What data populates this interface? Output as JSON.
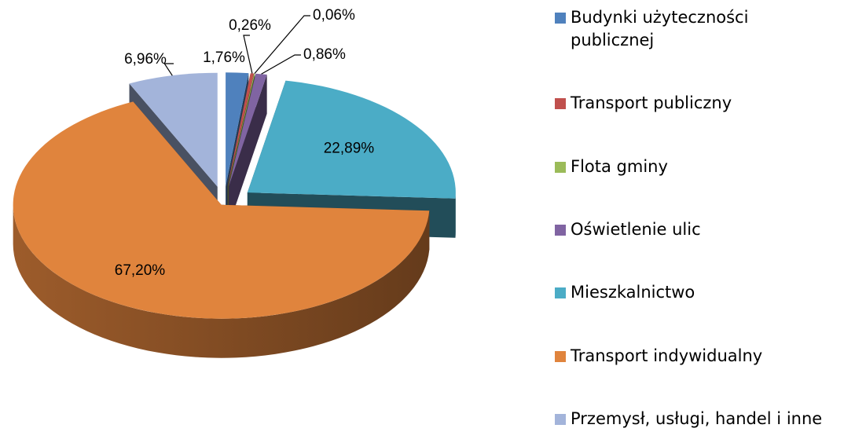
{
  "chart_data": {
    "type": "pie3d",
    "categories": [
      "Budynki użyteczności publicznej",
      "Transport publiczny",
      "Flota gminy",
      "Oświetlenie ulic",
      "Mieszkalnictwo",
      "Transport indywidualny",
      "Przemysł, usługi, handel i inne"
    ],
    "values": [
      1.76,
      0.26,
      0.06,
      0.86,
      22.89,
      67.2,
      6.96
    ],
    "value_labels": [
      "1,76%",
      "0,26%",
      "0,06%",
      "0,86%",
      "22,89%",
      "67,20%",
      "6,96%"
    ],
    "colors": [
      "#4f81bd",
      "#c0504d",
      "#9bbb59",
      "#8064a2",
      "#4bacc6",
      "#e0843d",
      "#a3b4da"
    ],
    "legend": "right"
  }
}
